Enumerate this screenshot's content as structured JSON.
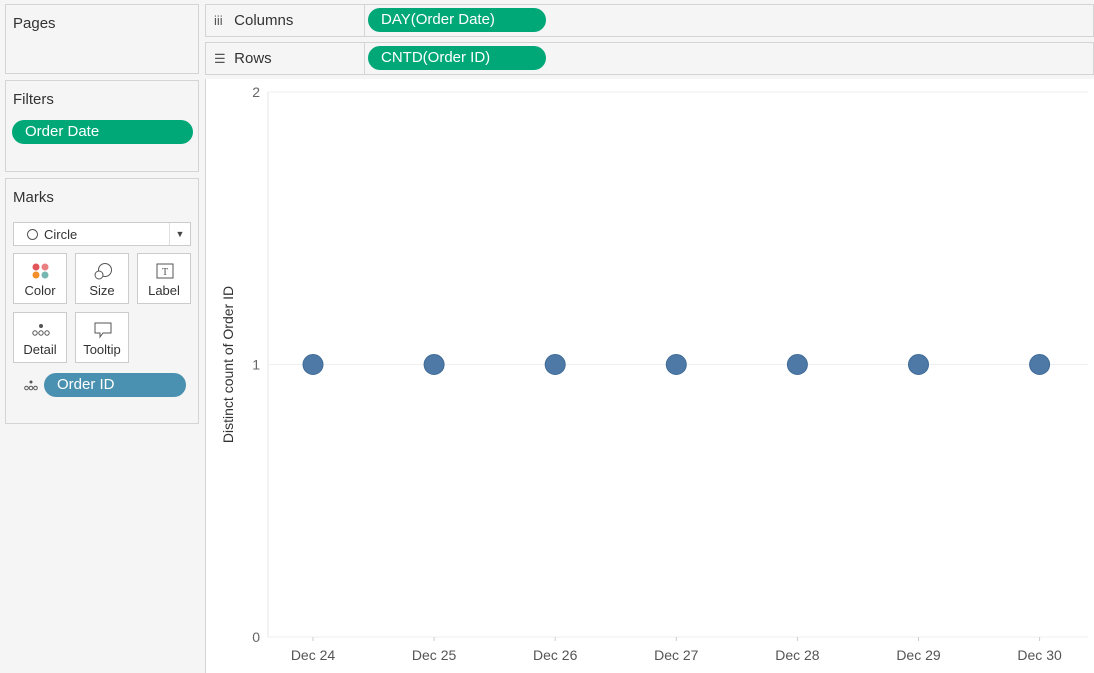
{
  "pages": {
    "title": "Pages"
  },
  "filters": {
    "title": "Filters",
    "pills": [
      "Order Date"
    ]
  },
  "marks": {
    "title": "Marks",
    "mark_type": "Circle",
    "buttons": {
      "color": "Color",
      "size": "Size",
      "label": "Label",
      "detail": "Detail",
      "tooltip": "Tooltip"
    },
    "detail_pill": "Order ID"
  },
  "shelves": {
    "columns": {
      "label": "Columns",
      "pill": "DAY(Order Date)"
    },
    "rows": {
      "label": "Rows",
      "pill": "CNTD(Order ID)"
    }
  },
  "colors": {
    "pill_green": "#00a878",
    "pill_blue": "#4a90b0",
    "mark": "#4e79a7"
  },
  "chart_data": {
    "type": "scatter",
    "categories": [
      "Dec 24",
      "Dec 25",
      "Dec 26",
      "Dec 27",
      "Dec 28",
      "Dec 29",
      "Dec 30"
    ],
    "values": [
      1,
      1,
      1,
      1,
      1,
      1,
      1
    ],
    "ylabel": "Distinct count of Order ID",
    "ylim": [
      0,
      2
    ],
    "yticks": [
      0,
      1,
      2
    ],
    "grid": true
  }
}
